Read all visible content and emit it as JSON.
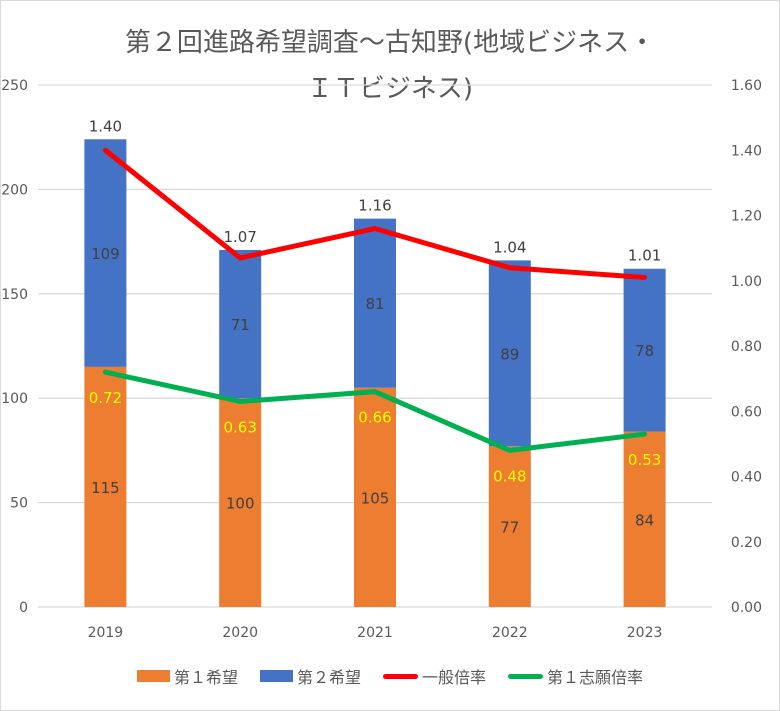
{
  "chart_data": {
    "type": "bar",
    "title_lines": [
      "第２回進路希望調査～古知野(地域ビジネス・",
      "ＩＴビジネス)"
    ],
    "categories": [
      "2019",
      "2020",
      "2021",
      "2022",
      "2023"
    ],
    "stacked": true,
    "series": [
      {
        "name": "第１希望",
        "type": "bar",
        "axis": "primary",
        "color": "#ED7D31",
        "values": [
          115,
          100,
          105,
          77,
          84
        ],
        "label_color": "#404040"
      },
      {
        "name": "第２希望",
        "type": "bar",
        "axis": "primary",
        "color": "#4472C4",
        "values": [
          109,
          71,
          81,
          89,
          78
        ],
        "label_color": "#404040"
      },
      {
        "name": "一般倍率",
        "type": "line",
        "axis": "secondary",
        "color": "#FF0000",
        "values": [
          1.4,
          1.07,
          1.16,
          1.04,
          1.01
        ],
        "labels": [
          "1.40",
          "1.07",
          "1.16",
          "1.04",
          "1.01"
        ],
        "label_color": "#404040"
      },
      {
        "name": "第１志願倍率",
        "type": "line",
        "axis": "secondary",
        "color": "#00B050",
        "values": [
          0.72,
          0.63,
          0.66,
          0.48,
          0.53
        ],
        "labels": [
          "0.72",
          "0.63",
          "0.66",
          "0.48",
          "0.53"
        ],
        "label_color": "#FFFF00"
      }
    ],
    "y_primary": {
      "min": 0,
      "max": 250,
      "ticks": [
        "0",
        "50",
        "100",
        "150",
        "200",
        "250"
      ]
    },
    "y_secondary": {
      "min": 0,
      "max": 1.6,
      "ticks": [
        "0.00",
        "0.20",
        "0.40",
        "0.60",
        "0.80",
        "1.00",
        "1.20",
        "1.40",
        "1.60"
      ]
    },
    "grid": true,
    "legend_position": "bottom",
    "xlabel": "",
    "ylabel": ""
  }
}
